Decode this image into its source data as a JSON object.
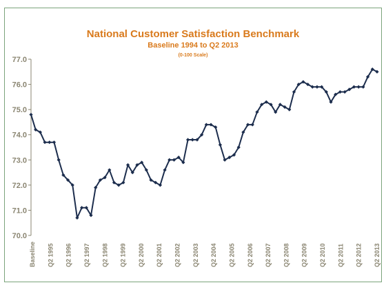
{
  "chart_data": {
    "type": "line",
    "title": "National Customer Satisfaction Benchmark",
    "subtitle": "Baseline 1994 to Q2 2013",
    "scale_note": "(0-100 Scale)",
    "xlabel": "",
    "ylabel": "",
    "ylim": [
      70.0,
      77.0
    ],
    "y_ticks": [
      "70.0",
      "71.0",
      "72.0",
      "73.0",
      "74.0",
      "75.0",
      "76.0",
      "77.0"
    ],
    "x_tick_labels": [
      "Baseline",
      "Q2 1995",
      "Q2 1996",
      "Q2 1997",
      "Q2 1998",
      "Q2 1999",
      "Q2 2000",
      "Q2 2001",
      "Q2 2002",
      "Q2 2003",
      "Q2 2004",
      "Q2 2005",
      "Q2 2006",
      "Q2 2007",
      "Q2 2008",
      "Q2 2009",
      "Q2 2010",
      "Q2 2011",
      "Q2 2012",
      "Q2 2013"
    ],
    "grid": false,
    "colors": {
      "line": "#1c2d4d",
      "title": "#d97a1c",
      "axis_text": "#8a8571",
      "frame": "#7aa37a"
    },
    "series": [
      {
        "values": [
          74.8,
          74.2,
          74.1,
          73.7,
          73.7,
          73.7,
          73.0,
          72.4,
          72.2,
          72.0,
          70.7,
          71.1,
          71.1,
          70.8,
          71.9,
          72.2,
          72.3,
          72.6,
          72.1,
          72.0,
          72.1,
          72.8,
          72.5,
          72.8,
          72.9,
          72.6,
          72.2,
          72.1,
          72.0,
          72.6,
          73.0,
          73.0,
          73.1,
          72.9,
          73.8,
          73.8,
          73.8,
          74.0,
          74.4,
          74.4,
          74.3,
          73.6,
          73.0,
          73.1,
          73.2,
          73.5,
          74.1,
          74.4,
          74.4,
          74.9,
          75.2,
          75.3,
          75.2,
          74.9,
          75.2,
          75.1,
          75.0,
          75.7,
          76.0,
          76.1,
          76.0,
          75.9,
          75.9,
          75.9,
          75.7,
          75.3,
          75.6,
          75.7,
          75.7,
          75.8,
          75.9,
          75.9,
          75.9,
          76.3,
          76.6,
          76.5
        ]
      }
    ]
  }
}
